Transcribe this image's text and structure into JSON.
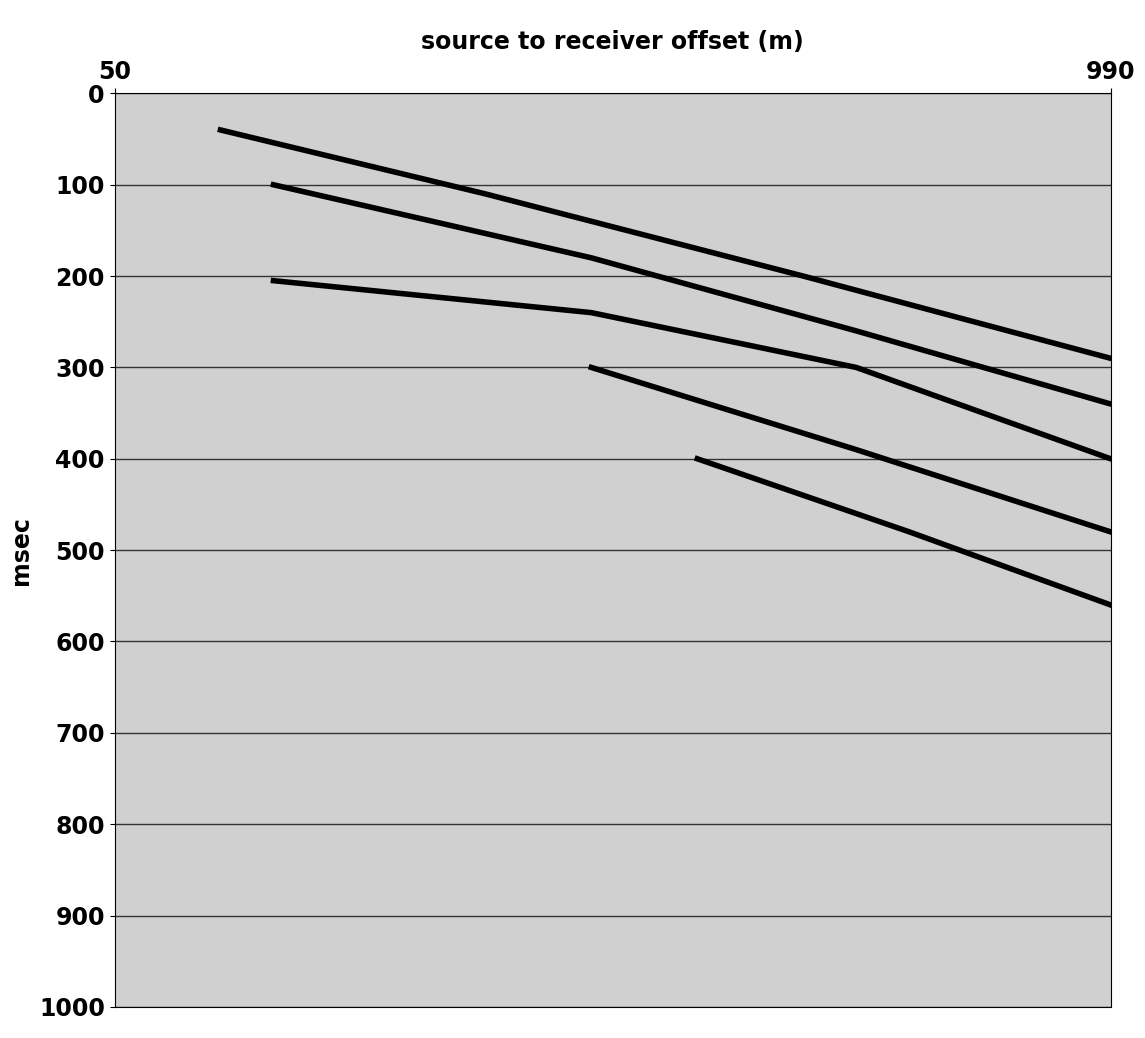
{
  "chart_data": {
    "type": "line",
    "x_label": "source to receiver offset (m)",
    "y_label": "msec",
    "xlim": [
      50,
      990
    ],
    "xticks": [
      50,
      990
    ],
    "ylim": [
      1000,
      0
    ],
    "yticks": [
      0,
      100,
      200,
      300,
      400,
      500,
      600,
      700,
      800,
      900,
      1000
    ],
    "grid": true,
    "color": "#000000",
    "series": [
      {
        "x": [
          150,
          400,
          700,
          990
        ],
        "values": [
          40,
          110,
          200,
          290
        ]
      },
      {
        "x": [
          200,
          500,
          750,
          990
        ],
        "values": [
          100,
          180,
          260,
          340
        ]
      },
      {
        "x": [
          200,
          500,
          750,
          990
        ],
        "values": [
          205,
          240,
          300,
          400
        ]
      },
      {
        "x": [
          500,
          750,
          990
        ],
        "values": [
          300,
          390,
          480
        ]
      },
      {
        "x": [
          600,
          800,
          990
        ],
        "values": [
          400,
          480,
          560
        ]
      }
    ]
  }
}
